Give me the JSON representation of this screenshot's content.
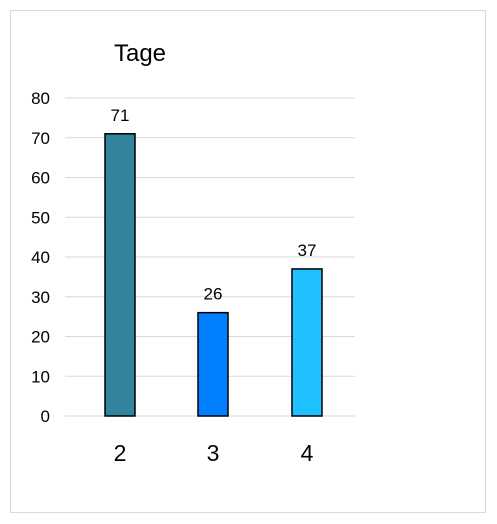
{
  "chart_data": {
    "type": "bar",
    "title": "Tage",
    "categories": [
      "2",
      "3",
      "4"
    ],
    "values": [
      71,
      26,
      37
    ],
    "colors": [
      "#31849b",
      "#0080ff",
      "#1ec0ff"
    ],
    "bar_outline": "#000000",
    "ylim": [
      0,
      80
    ],
    "yticks": [
      0,
      10,
      20,
      30,
      40,
      50,
      60,
      70,
      80
    ],
    "grid": true,
    "grid_color": "#d9d9d9",
    "legend": "none",
    "data_labels": [
      "71",
      "26",
      "37"
    ]
  }
}
